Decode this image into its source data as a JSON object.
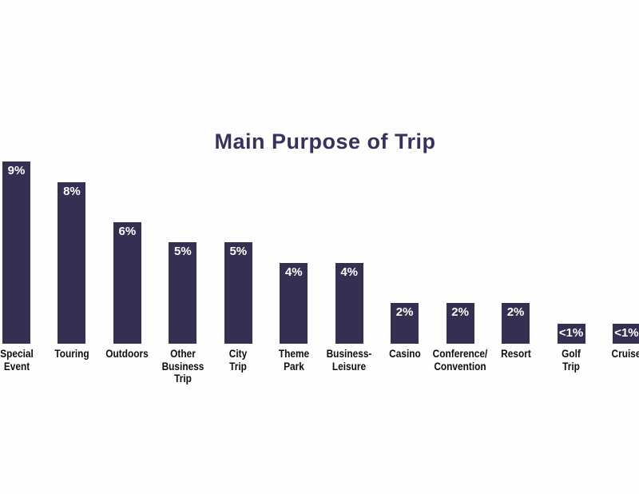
{
  "page": {
    "background_color": "#ffffff"
  },
  "chart_data": {
    "type": "bar",
    "orientation": "vertical",
    "title": "Main Purpose of Trip",
    "title_color": "#37325B",
    "bar_color": "#353052",
    "value_label_color": "#ffffff",
    "category_label_color": "#0d0d0d",
    "axes_visible": false,
    "gridlines": false,
    "legend": "none",
    "xlabel": "",
    "ylabel": "",
    "ylim": [
      0,
      10
    ],
    "unit": "percent",
    "categories": [
      "Special Event",
      "Touring",
      "Outdoors",
      "Other Business Trip",
      "City Trip",
      "Theme Park",
      "Business-Leisure",
      "Casino",
      "Conference/Convention",
      "Resort",
      "Golf Trip",
      "Cruise"
    ],
    "category_display": [
      "Special\nEvent",
      "Touring",
      "Outdoors",
      "Other\nBusiness\nTrip",
      "City\nTrip",
      "Theme\nPark",
      "Business-\nLeisure",
      "Casino",
      "Conference/\nConvention",
      "Resort",
      "Golf\nTrip",
      "Cruise"
    ],
    "values": [
      9,
      8,
      6,
      5,
      5,
      4,
      4,
      2,
      2,
      2,
      1,
      1
    ],
    "value_labels": [
      "9%",
      "8%",
      "6%",
      "5%",
      "5%",
      "4%",
      "4%",
      "2%",
      "2%",
      "2%",
      "<1%",
      "<1%"
    ]
  }
}
